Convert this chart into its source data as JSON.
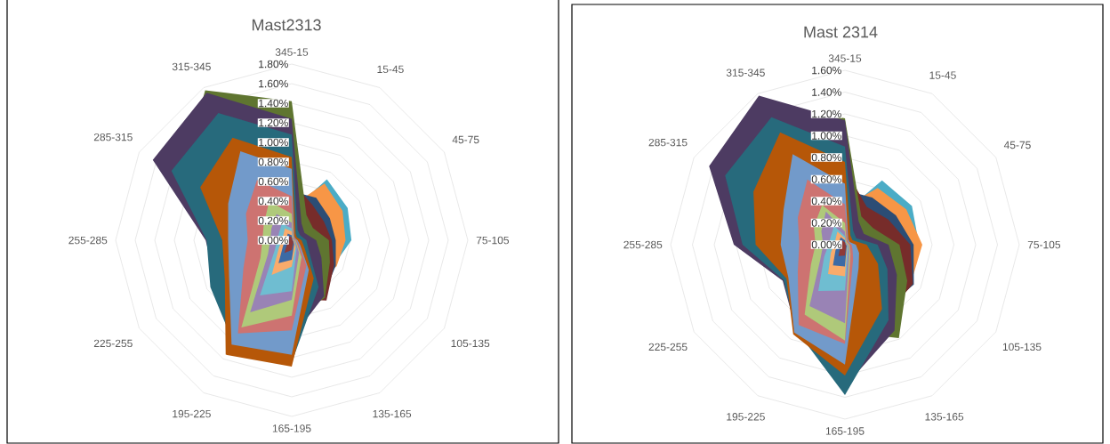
{
  "chart_data": [
    {
      "type": "radar",
      "title": "Mast2313",
      "categories": [
        "345-15",
        "15-45",
        "45-75",
        "75-105",
        "105-135",
        "135-165",
        "165-195",
        "195-225",
        "225-255",
        "255-285",
        "285-315",
        "315-345"
      ],
      "ylim": [
        0,
        1.8
      ],
      "yticks": [
        {
          "value": 0,
          "label": "0.00%"
        },
        {
          "value": 0.2,
          "label": "0.20%"
        },
        {
          "value": 0.4,
          "label": "0.40%"
        },
        {
          "value": 0.6,
          "label": "0.60%"
        },
        {
          "value": 0.8,
          "label": "0.80%"
        },
        {
          "value": 1.0,
          "label": "1.00%"
        },
        {
          "value": 1.2,
          "label": "1.20%"
        },
        {
          "value": 1.4,
          "label": "1.40%"
        },
        {
          "value": 1.6,
          "label": "1.60%"
        },
        {
          "value": 1.8,
          "label": "1.80%"
        }
      ],
      "grid": true,
      "series": [
        {
          "color": "#4bacc6",
          "values": [
            0.3,
            0.72,
            0.66,
            0.61,
            0.5,
            0.45,
            0.3,
            0.2,
            0.2,
            0.2,
            0.3,
            0.4
          ]
        },
        {
          "color": "#f79646",
          "values": [
            0.35,
            0.67,
            0.6,
            0.55,
            0.53,
            0.5,
            0.35,
            0.25,
            0.2,
            0.25,
            0.35,
            0.5
          ]
        },
        {
          "color": "#2c4d75",
          "values": [
            0.5,
            0.5,
            0.45,
            0.45,
            0.52,
            0.65,
            0.5,
            0.3,
            0.25,
            0.3,
            0.5,
            0.7
          ]
        },
        {
          "color": "#772c2a",
          "values": [
            0.6,
            0.42,
            0.38,
            0.41,
            0.5,
            0.71,
            0.6,
            0.4,
            0.3,
            0.4,
            0.7,
            1.0
          ]
        },
        {
          "color": "#5f7530",
          "values": [
            1.42,
            0.3,
            0.25,
            0.38,
            0.45,
            0.68,
            0.8,
            0.6,
            0.5,
            0.7,
            1.3,
            1.77
          ]
        },
        {
          "color": "#4d3b62",
          "values": [
            1.24,
            0.2,
            0.15,
            0.25,
            0.35,
            0.66,
            1.0,
            0.9,
            0.89,
            0.88,
            1.64,
            1.74
          ]
        },
        {
          "color": "#276a7c",
          "values": [
            1.08,
            0.12,
            0.1,
            0.15,
            0.2,
            0.55,
            1.25,
            1.2,
            0.96,
            0.87,
            1.42,
            1.5
          ]
        },
        {
          "color": "#b65708",
          "values": [
            0.85,
            0.08,
            0.06,
            0.1,
            0.15,
            0.45,
            1.29,
            1.35,
            0.79,
            0.71,
            1.08,
            1.21
          ]
        },
        {
          "color": "#729aca",
          "values": [
            0.73,
            0.05,
            0.04,
            0.06,
            0.1,
            0.35,
            1.17,
            1.23,
            0.74,
            0.65,
            0.75,
            1.05
          ]
        },
        {
          "color": "#cd7371",
          "values": [
            0.45,
            0.04,
            0.03,
            0.05,
            0.08,
            0.3,
            0.92,
            1.1,
            0.57,
            0.45,
            0.54,
            0.71
          ]
        },
        {
          "color": "#afc97a",
          "values": [
            0.27,
            0.03,
            0.02,
            0.04,
            0.06,
            0.2,
            0.77,
            1.03,
            0.37,
            0.3,
            0.33,
            0.46
          ]
        },
        {
          "color": "#9983b5",
          "values": [
            0.18,
            0.02,
            0.02,
            0.03,
            0.05,
            0.15,
            0.61,
            0.85,
            0.28,
            0.22,
            0.24,
            0.31
          ]
        },
        {
          "color": "#6fbdd1",
          "values": [
            0.12,
            0.02,
            0.01,
            0.02,
            0.04,
            0.1,
            0.52,
            0.65,
            0.2,
            0.15,
            0.15,
            0.2
          ]
        },
        {
          "color": "#f9ab6b",
          "values": [
            0.09,
            0.01,
            0.01,
            0.02,
            0.03,
            0.08,
            0.27,
            0.41,
            0.15,
            0.1,
            0.1,
            0.14
          ]
        },
        {
          "color": "#3c6aa5",
          "values": [
            0.05,
            0.01,
            0.01,
            0.01,
            0.02,
            0.05,
            0.2,
            0.27,
            0.1,
            0.06,
            0.06,
            0.08
          ]
        },
        {
          "color": "#8e3a38",
          "values": [
            0.03,
            0.01,
            0,
            0.01,
            0.01,
            0.03,
            0.1,
            0.15,
            0.05,
            0.03,
            0.03,
            0.05
          ]
        }
      ]
    },
    {
      "type": "radar",
      "title": "Mast 2314",
      "categories": [
        "345-15",
        "15-45",
        "45-75",
        "75-105",
        "105-135",
        "135-165",
        "165-195",
        "195-225",
        "225-255",
        "255-285",
        "285-315",
        "315-345"
      ],
      "ylim": [
        0,
        1.6
      ],
      "yticks": [
        {
          "value": 0,
          "label": "0.00%"
        },
        {
          "value": 0.2,
          "label": "0.20%"
        },
        {
          "value": 0.4,
          "label": "0.40%"
        },
        {
          "value": 0.6,
          "label": "0.60%"
        },
        {
          "value": 0.8,
          "label": "0.80%"
        },
        {
          "value": 1.0,
          "label": "1.00%"
        },
        {
          "value": 1.2,
          "label": "1.20%"
        },
        {
          "value": 1.4,
          "label": "1.40%"
        },
        {
          "value": 1.6,
          "label": "1.60%"
        }
      ],
      "grid": true,
      "series": [
        {
          "color": "#4bacc6",
          "values": [
            0.3,
            0.68,
            0.71,
            0.68,
            0.65,
            0.5,
            0.3,
            0.2,
            0.2,
            0.2,
            0.3,
            0.4
          ]
        },
        {
          "color": "#f79646",
          "values": [
            0.35,
            0.6,
            0.65,
            0.71,
            0.7,
            0.6,
            0.35,
            0.25,
            0.2,
            0.25,
            0.35,
            0.5
          ]
        },
        {
          "color": "#2c4d75",
          "values": [
            0.5,
            0.5,
            0.54,
            0.63,
            0.73,
            0.7,
            0.5,
            0.3,
            0.25,
            0.3,
            0.5,
            0.7
          ]
        },
        {
          "color": "#772c2a",
          "values": [
            0.7,
            0.4,
            0.46,
            0.6,
            0.72,
            0.75,
            0.6,
            0.4,
            0.3,
            0.4,
            0.7,
            1.0
          ]
        },
        {
          "color": "#5f7530",
          "values": [
            1.16,
            0.3,
            0.3,
            0.5,
            0.66,
            0.99,
            0.8,
            0.5,
            0.5,
            0.7,
            1.2,
            1.5
          ]
        },
        {
          "color": "#4d3b62",
          "values": [
            1.14,
            0.25,
            0.2,
            0.4,
            0.55,
            0.91,
            1.3,
            0.9,
            0.66,
            1.02,
            1.44,
            1.58
          ]
        },
        {
          "color": "#276a7c",
          "values": [
            0.9,
            0.15,
            0.12,
            0.3,
            0.45,
            0.8,
            1.38,
            0.9,
            0.65,
            0.94,
            1.27,
            1.35
          ]
        },
        {
          "color": "#b65708",
          "values": [
            0.76,
            0.1,
            0.08,
            0.2,
            0.35,
            0.68,
            1.2,
            0.95,
            0.62,
            0.82,
            0.97,
            1.19
          ]
        },
        {
          "color": "#729aca",
          "values": [
            0.56,
            0.06,
            0.05,
            0.1,
            0.15,
            0.25,
            1.1,
            0.93,
            0.6,
            0.59,
            0.65,
            0.96
          ]
        },
        {
          "color": "#cd7371",
          "values": [
            0.37,
            0.05,
            0.04,
            0.06,
            0.08,
            0.15,
            0.91,
            0.85,
            0.5,
            0.42,
            0.5,
            0.69
          ]
        },
        {
          "color": "#afc97a",
          "values": [
            0.2,
            0.03,
            0.03,
            0.04,
            0.05,
            0.1,
            0.88,
            0.74,
            0.36,
            0.27,
            0.33,
            0.42
          ]
        },
        {
          "color": "#9983b5",
          "values": [
            0.12,
            0.02,
            0.02,
            0.03,
            0.04,
            0.08,
            0.72,
            0.65,
            0.26,
            0.2,
            0.25,
            0.35
          ]
        },
        {
          "color": "#6fbdd1",
          "values": [
            0.08,
            0.02,
            0.01,
            0.02,
            0.03,
            0.06,
            0.42,
            0.49,
            0.22,
            0.15,
            0.15,
            0.2
          ]
        },
        {
          "color": "#f9ab6b",
          "values": [
            0.06,
            0.01,
            0.01,
            0.02,
            0.02,
            0.04,
            0.29,
            0.31,
            0.15,
            0.1,
            0.1,
            0.14
          ]
        },
        {
          "color": "#3c6aa5",
          "values": [
            0.04,
            0.01,
            0.01,
            0.01,
            0.02,
            0.03,
            0.2,
            0.22,
            0.1,
            0.06,
            0.06,
            0.08
          ]
        },
        {
          "color": "#8e3a38",
          "values": [
            0.02,
            0.01,
            0,
            0.01,
            0.01,
            0.02,
            0.1,
            0.12,
            0.05,
            0.03,
            0.03,
            0.05
          ]
        }
      ]
    }
  ]
}
